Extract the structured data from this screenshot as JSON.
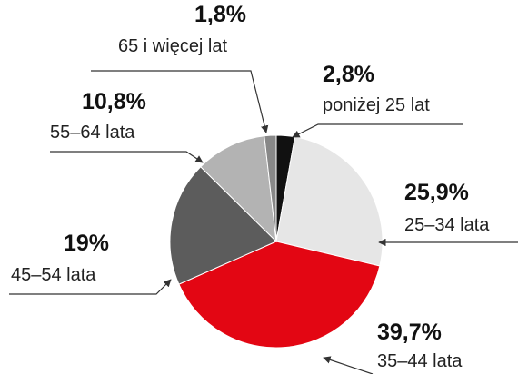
{
  "chart_data": {
    "type": "pie",
    "categories": [
      "poniżej 25 lat",
      "25–34 lata",
      "35–44 lata",
      "45–54 lata",
      "55–64 lata",
      "65 i więcej lat"
    ],
    "values": [
      2.8,
      25.9,
      39.7,
      19,
      10.8,
      1.8
    ],
    "value_labels": [
      "2,8%",
      "25,9%",
      "39,7%",
      "19%",
      "10,8%",
      "1,8%"
    ],
    "colors": [
      "#111111",
      "#e6e6e6",
      "#e30613",
      "#5c5c5c",
      "#b3b3b3",
      "#888888"
    ]
  }
}
